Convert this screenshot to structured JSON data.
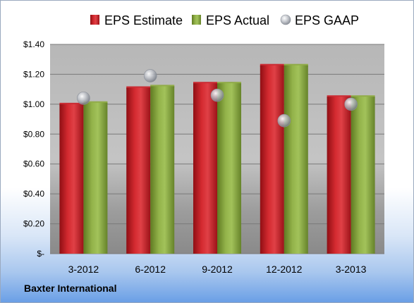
{
  "chart_data": {
    "type": "bar",
    "categories": [
      "3-2012",
      "6-2012",
      "9-2012",
      "12-2012",
      "3-2013"
    ],
    "series": [
      {
        "name": "EPS Estimate",
        "values": [
          1.0,
          1.11,
          1.14,
          1.26,
          1.05
        ],
        "color": "#cc1f27"
      },
      {
        "name": "EPS Actual",
        "values": [
          1.01,
          1.12,
          1.14,
          1.26,
          1.05
        ],
        "color": "#8caa3c"
      },
      {
        "name": "EPS GAAP",
        "values": [
          1.04,
          1.19,
          1.06,
          0.89,
          1.0
        ],
        "color": "#c9ccd2",
        "marker": "sphere"
      }
    ],
    "yticks": [
      "$-",
      "$0.20",
      "$0.40",
      "$0.60",
      "$0.80",
      "$1.00",
      "$1.20",
      "$1.40"
    ],
    "ylim": [
      0,
      1.4
    ],
    "grid": true,
    "legend_position": "top"
  },
  "footer": {
    "company": "Baxter International"
  }
}
